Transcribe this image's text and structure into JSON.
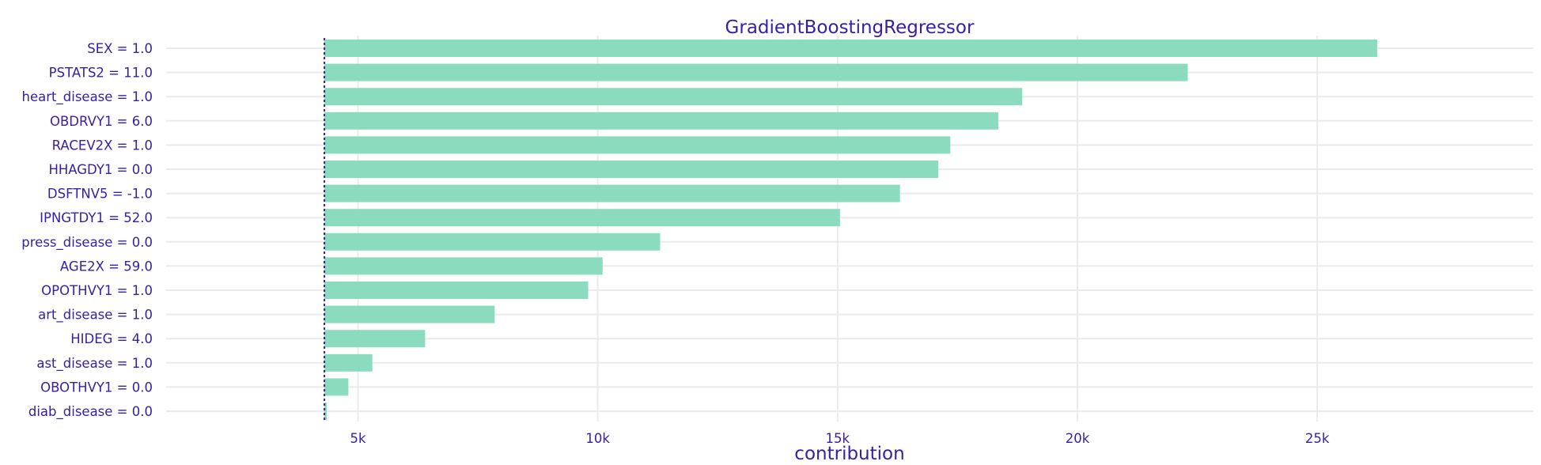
{
  "chart_data": {
    "type": "bar",
    "orientation": "horizontal",
    "title": "GradientBoostingRegressor",
    "xlabel": "contribution",
    "ylabel": "",
    "xlim": [
      1000,
      29500
    ],
    "baseline": 4300,
    "x_ticks": [
      5000,
      10000,
      15000,
      20000,
      25000
    ],
    "x_tick_labels": [
      "5k",
      "10k",
      "15k",
      "20k",
      "25k"
    ],
    "grid": true,
    "bar_color": "#8bdcbe",
    "baseline_color": "#371ea3",
    "text_color": "#371ea3",
    "grid_color": "#ebebeb",
    "categories": [
      "SEX = 1.0",
      "PSTATS2 = 11.0",
      "heart_disease = 1.0",
      "OBDRVY1 = 6.0",
      "RACEV2X = 1.0",
      "HHAGDY1 = 0.0",
      "DSFTNV5 = -1.0",
      "IPNGTDY1 = 52.0",
      "press_disease = 0.0",
      "AGE2X = 59.0",
      "OPOTHVY1 = 1.0",
      "art_disease = 1.0",
      "HIDEG = 4.0",
      "ast_disease = 1.0",
      "OBOTHVY1 = 0.0",
      "diab_disease = 0.0"
    ],
    "values": [
      26250,
      22300,
      18850,
      18350,
      17350,
      17100,
      16300,
      15050,
      11300,
      10100,
      9800,
      7850,
      6400,
      5300,
      4800,
      4350
    ]
  }
}
